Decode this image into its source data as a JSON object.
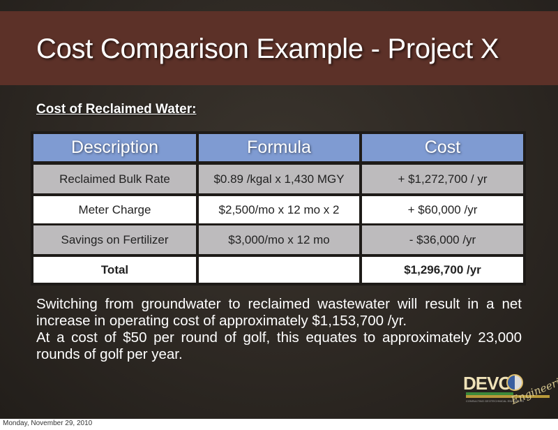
{
  "slide": {
    "title": "Cost Comparison Example - Project X",
    "subheading": "Cost of Reclaimed Water:",
    "table": {
      "headers": [
        "Description",
        "Formula",
        "Cost"
      ],
      "rows": [
        [
          "Reclaimed Bulk Rate",
          "$0.89 /kgal x 1,430 MGY",
          "+ $1,272,700 / yr"
        ],
        [
          "Meter Charge",
          "$2,500/mo x 12 mo x 2",
          "+ $60,000 /yr"
        ],
        [
          "Savings on Fertilizer",
          "$3,000/mo x 12 mo",
          "- $36,000 /yr"
        ],
        [
          "Total",
          "",
          "$1,296,700 /yr"
        ]
      ]
    },
    "paragraphs": [
      "Switching from groundwater to reclaimed wastewater will result in a net increase in operating cost of approximately $1,153,700 /yr.",
      "At a cost of $50 per round of golf, this equates to approximately 23,000 rounds of golf per year."
    ],
    "logo": {
      "main": "DEVO",
      "script": "Engineering",
      "tagline": "CONSULTING GEOTECHNICAL ENGINEERS"
    }
  },
  "footer": {
    "date": "Monday, November 29, 2010"
  },
  "colors": {
    "band": "#5c3128",
    "header": "#7f9bd2",
    "row_gray": "#bdbbbd",
    "background": "#2c2722"
  }
}
